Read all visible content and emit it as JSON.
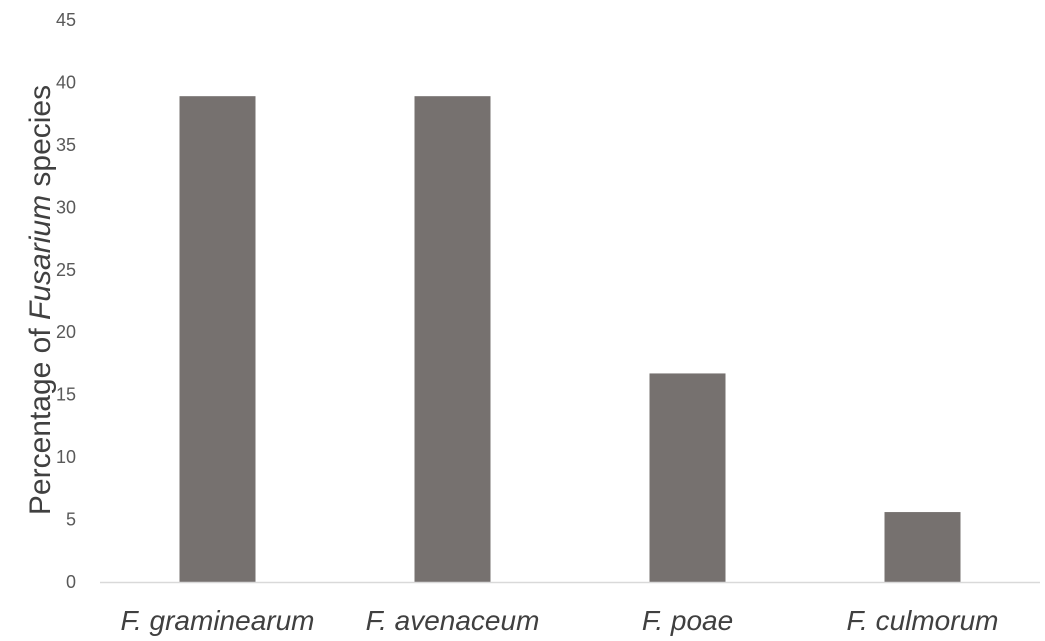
{
  "chart_data": {
    "type": "bar",
    "categories": [
      "F. graminearum",
      "F. avenaceum",
      "F. poae",
      "F. culmorum"
    ],
    "values": [
      38.9,
      38.9,
      16.7,
      5.6
    ],
    "title": "",
    "xlabel": "",
    "ylabel": {
      "prefix": "Percentage of ",
      "italic": "Fusarium",
      "suffix": " species"
    },
    "ylim": [
      0,
      45
    ],
    "yticks": [
      0,
      5,
      10,
      15,
      20,
      25,
      30,
      35,
      40,
      45
    ],
    "grid": false,
    "legend": "none",
    "bar_color": "#76716F",
    "axis_color": "#D9D9D9"
  }
}
